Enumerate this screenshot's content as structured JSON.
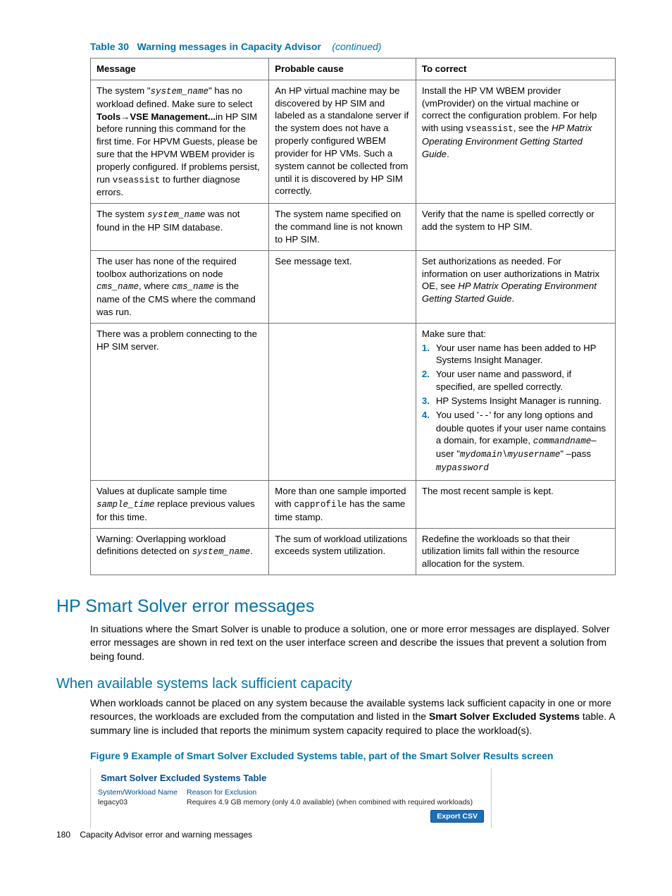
{
  "colors": {
    "accent": "#0073a8",
    "border": "#717171",
    "fig_title": "#004b8d",
    "btn_bg": "#1f6db4",
    "btn_border": "#0a4f90"
  },
  "caption": {
    "prefix": "Table 30",
    "title": "Warning messages in Capacity Advisor",
    "suffix": "(continued)"
  },
  "table": {
    "headers": {
      "c1": "Message",
      "c2": "Probable cause",
      "c3": "To correct"
    },
    "rows": {
      "r1": {
        "msg_p1": "The system \"",
        "msg_sys": "system_name",
        "msg_p2": "\" has no workload defined. Make sure to select ",
        "msg_bold": "Tools→VSE Management...",
        "msg_p3": "in HP SIM before running this command for the first time. For HPVM Guests, please be sure that the HPVM WBEM provider is properly configured. If problems persist, run ",
        "msg_mono": "vseassist",
        "msg_p4": " to further diagnose errors.",
        "cause": "An HP virtual machine may be discovered by HP SIM and labeled as a standalone server if the system does not have a properly configured WBEM provider for HP VMs. Such a system cannot be collected from until it is discovered by HP SIM correctly.",
        "fix_p1": "Install the HP VM WBEM provider (vmProvider) on the virtual machine or correct the configuration problem. For help with using ",
        "fix_mono": "vseassist",
        "fix_p2": ", see the ",
        "fix_ital": "HP Matrix Operating Environment Getting Started Guide",
        "fix_p3": "."
      },
      "r2": {
        "msg_p1": "The system ",
        "msg_sys": "system_name",
        "msg_p2": " was not found in the HP SIM database.",
        "cause": "The system name specified on the command line is not known to HP SIM.",
        "fix": "Verify that the name is spelled correctly or add the system to HP SIM."
      },
      "r3": {
        "msg_p1": "The user has none of the required toolbox authorizations on node ",
        "msg_cms1": "cms_name",
        "msg_p2": ", where ",
        "msg_cms2": "cms_name",
        "msg_p3": " is the name of the CMS where the command was run.",
        "cause": "See message text.",
        "fix_p1": "Set authorizations as needed. For information on user authorizations in Matrix OE, see ",
        "fix_ital": "HP Matrix Operating Environment Getting Started Guide",
        "fix_p2": "."
      },
      "r4": {
        "msg": "There was a problem connecting to the HP SIM server.",
        "cause": "",
        "fix_lead": "Make sure that:",
        "li1": "Your user name has been added to HP Systems Insight Manager.",
        "li2": "Your user name and password, if specified, are spelled correctly.",
        "li3": "HP Systems Insight Manager is running.",
        "li4_p1": "You used '",
        "li4_mono1": "--",
        "li4_p2": "' for any long options and double quotes if your user name contains a domain, for example, ",
        "li4_mono2": "commandname",
        "li4_p3": "– user \"",
        "li4_mono3": "mydomain\\myusername",
        "li4_p4": "\" –pass ",
        "li4_mono4": "mypassword"
      },
      "r5": {
        "msg_p1": "Values at duplicate sample time ",
        "msg_mono": "sample_time",
        "msg_p2": " replace previous values for this time.",
        "cause_p1": "More than one sample imported with ",
        "cause_mono": "capprofile",
        "cause_p2": " has the same time stamp.",
        "fix": "The most recent sample is kept."
      },
      "r6": {
        "msg_p1": "Warning: Overlapping workload definitions detected on ",
        "msg_mono": "system_name",
        "msg_p2": ".",
        "cause": "The sum of workload utilizations exceeds system utilization.",
        "fix": "Redefine the workloads so that their utilization limits fall within the resource allocation for the system."
      }
    }
  },
  "section1": {
    "heading": "HP Smart Solver error messages",
    "body": "In situations where the Smart Solver is unable to produce a solution, one or more error messages are displayed. Solver error messages are shown in red text on the user interface screen and describe the issues that prevent a solution from being found."
  },
  "section2": {
    "heading": "When available systems lack sufficient capacity",
    "body_p1": "When workloads cannot be placed on any system because the available systems lack sufficient capacity in one or more resources, the workloads are excluded from the computation and listed in the ",
    "body_bold": "Smart Solver Excluded Systems",
    "body_p2": " table. A summary line is included that reports the minimum system capacity required to place the workload(s)."
  },
  "figure": {
    "caption": "Figure 9 Example of Smart Solver Excluded Systems table, part of the Smart Solver Results screen",
    "title": "Smart Solver Excluded Systems Table",
    "head_c1": "System/Workload Name",
    "head_c2": "Reason for Exclusion",
    "row_c1": "legacy03",
    "row_c2": "Requires 4.9 GB memory (only 4.0 available) (when combined with required workloads)",
    "button": "Export CSV"
  },
  "footer": {
    "page": "180",
    "label": "Capacity Advisor error and warning messages"
  }
}
